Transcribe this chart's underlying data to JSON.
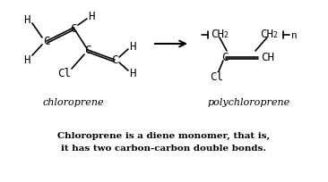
{
  "bg_color": "#ffffff",
  "fig_width": 3.66,
  "fig_height": 2.05,
  "dpi": 100,
  "title_line1": "Chloroprene is a diene monomer, that is,",
  "title_line2": "it has two carbon-carbon double bonds.",
  "label_chloroprene": "chloroprene",
  "label_polychloroprene": "polychloroprene",
  "font_size_labels": 8.0,
  "font_size_caption": 7.5,
  "font_size_chem": 9.0
}
